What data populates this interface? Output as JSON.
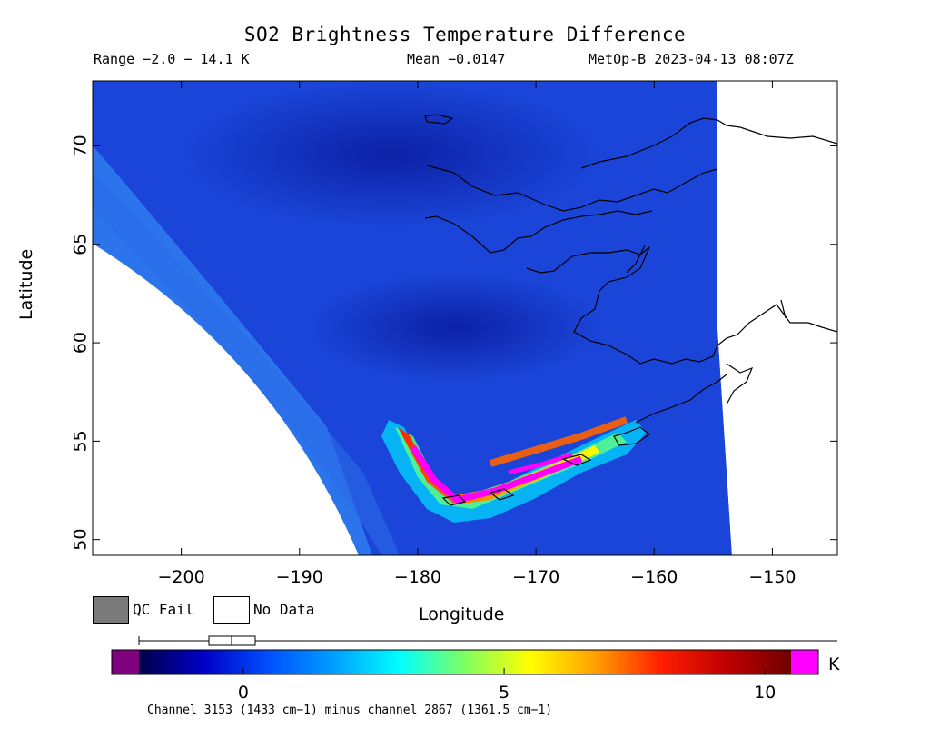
{
  "header": {
    "title": "SO2 Brightness Temperature Difference",
    "range": "Range −2.0 − 14.1 K",
    "mean": "Mean −0.0147",
    "satellite": "MetOp-B 2023-04-13 08:07Z"
  },
  "map": {
    "xlabel": "Longitude",
    "ylabel": "Latitude",
    "x_ticks": [
      "−200",
      "−190",
      "−180",
      "−170",
      "−160",
      "−150"
    ],
    "x_tick_values": [
      -200,
      -190,
      -180,
      -170,
      -160,
      -150
    ],
    "y_ticks": [
      "50",
      "55",
      "60",
      "65",
      "70"
    ],
    "y_tick_values": [
      50,
      55,
      60,
      65,
      70
    ],
    "lon_range": [
      -207.5,
      -144.5
    ],
    "lat_range": [
      49.2,
      73.3
    ],
    "colors": {
      "background_field": "#1a45d8",
      "dark_field": "#0a1fb0",
      "swath_edge": "#2e86ef",
      "no_data": "#ffffff",
      "coastline": "#000000"
    }
  },
  "legend": {
    "qc_fail_label": "QC Fail",
    "no_data_label": "No Data",
    "qc_fail_color": "#7a7a7a",
    "no_data_color": "#ffffff"
  },
  "colorbar": {
    "unit": "K",
    "tick_labels": [
      "0",
      "5",
      "10"
    ],
    "tick_values": [
      0,
      5,
      10
    ],
    "value_range": [
      -2.0,
      10.5
    ],
    "low_color": "#800080",
    "high_color": "#ff00ff",
    "stops": [
      "#00004a",
      "#0000c8",
      "#0050ff",
      "#00a0ff",
      "#00ffff",
      "#80ff60",
      "#ffff00",
      "#ffa000",
      "#ff2000",
      "#c00000",
      "#700000"
    ],
    "note": "Channel 3153 (1433 cm−1) minus channel 2867 (1361.5 cm−1)"
  }
}
